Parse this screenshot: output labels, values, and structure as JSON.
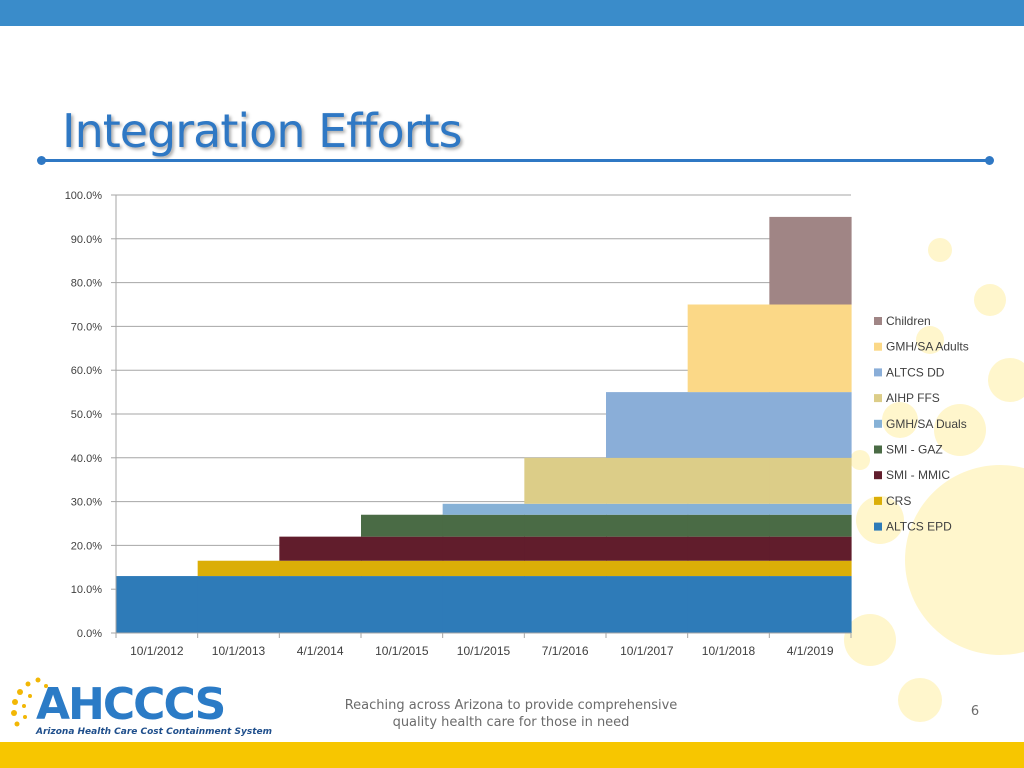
{
  "slide": {
    "title": "Integration Efforts",
    "footer_line1": "Reaching across Arizona to provide comprehensive",
    "footer_line2": "quality health care for those in need",
    "page_number": "6"
  },
  "logo": {
    "name": "AHCCCS",
    "subtitle": "Arizona Health Care Cost Containment System"
  },
  "colors": {
    "top_bar": "#3a8cca",
    "bottom_bar": "#f7c600",
    "title": "#2f78c4"
  },
  "chart_data": {
    "type": "area",
    "categories": [
      "10/1/2012",
      "10/1/2013",
      "4/1/2014",
      "10/1/2015",
      "10/1/2015",
      "7/1/2016",
      "10/1/2017",
      "10/1/2018",
      "4/1/2019"
    ],
    "ylim": [
      0,
      100
    ],
    "yticks": [
      "0.0%",
      "10.0%",
      "20.0%",
      "30.0%",
      "40.0%",
      "50.0%",
      "60.0%",
      "70.0%",
      "80.0%",
      "90.0%",
      "100.0%"
    ],
    "grid": true,
    "legend_position": "right",
    "stacked": true,
    "series": [
      {
        "name": "ALTCS EPD",
        "color": "#2e7bb8",
        "values": [
          13,
          13,
          13,
          13,
          13,
          13,
          13,
          13,
          13
        ]
      },
      {
        "name": "CRS",
        "color": "#dbae07",
        "values": [
          0,
          3.5,
          3.5,
          3.5,
          3.5,
          3.5,
          3.5,
          3.5,
          3.5
        ]
      },
      {
        "name": "SMI - MMIC",
        "color": "#611d2c",
        "values": [
          0,
          0,
          5.5,
          5.5,
          5.5,
          5.5,
          5.5,
          5.5,
          5.5
        ]
      },
      {
        "name": "SMI - GAZ",
        "color": "#4a6b45",
        "values": [
          0,
          0,
          0,
          5,
          5,
          5,
          5,
          5,
          5
        ]
      },
      {
        "name": "GMH/SA Duals",
        "color": "#86b1d6",
        "values": [
          0,
          0,
          0,
          0,
          2.5,
          2.5,
          2.5,
          2.5,
          2.5
        ]
      },
      {
        "name": "AIHP FFS",
        "color": "#dccd88",
        "values": [
          0,
          0,
          0,
          0,
          0,
          10.5,
          10.5,
          10.5,
          10.5
        ]
      },
      {
        "name": "ALTCS DD",
        "color": "#8aaed8",
        "values": [
          0,
          0,
          0,
          0,
          0,
          0,
          15,
          15,
          15
        ]
      },
      {
        "name": "GMH/SA Adults",
        "color": "#fbd887",
        "values": [
          0,
          0,
          0,
          0,
          0,
          0,
          0,
          20,
          20
        ]
      },
      {
        "name": "Children",
        "color": "#a08585",
        "values": [
          0,
          0,
          0,
          0,
          0,
          0,
          0,
          0,
          20
        ]
      }
    ]
  }
}
